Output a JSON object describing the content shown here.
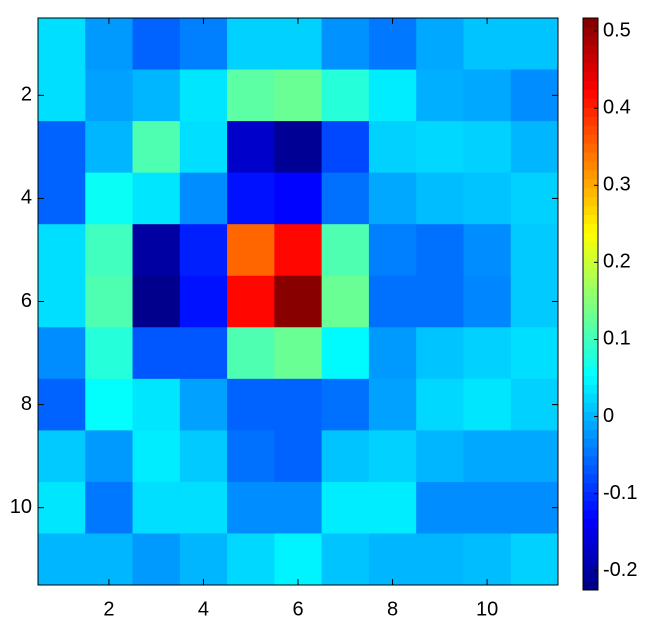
{
  "chart_data": {
    "type": "heatmap",
    "colormap": "jet",
    "x": [
      1,
      2,
      3,
      4,
      5,
      6,
      7,
      8,
      9,
      10,
      11
    ],
    "y": [
      1,
      2,
      3,
      4,
      5,
      6,
      7,
      8,
      9,
      10,
      11
    ],
    "values": [
      [
        0.03,
        -0.02,
        -0.06,
        -0.04,
        0.02,
        0.02,
        -0.025,
        -0.045,
        -0.01,
        0.01,
        0.01
      ],
      [
        0.03,
        -0.015,
        0.0,
        0.035,
        0.12,
        0.13,
        0.08,
        0.04,
        -0.005,
        -0.01,
        -0.03
      ],
      [
        -0.06,
        0.0,
        0.11,
        0.03,
        -0.17,
        -0.21,
        -0.08,
        0.02,
        0.025,
        0.02,
        0.0
      ],
      [
        -0.06,
        0.06,
        0.035,
        -0.03,
        -0.12,
        -0.13,
        -0.05,
        -0.01,
        0.005,
        0.01,
        0.02
      ],
      [
        0.03,
        0.1,
        -0.2,
        -0.11,
        0.35,
        0.42,
        0.11,
        -0.04,
        -0.05,
        -0.03,
        0.015
      ],
      [
        0.03,
        0.11,
        -0.215,
        -0.12,
        0.42,
        0.51,
        0.13,
        -0.05,
        -0.05,
        -0.035,
        0.015
      ],
      [
        -0.03,
        0.08,
        -0.07,
        -0.07,
        0.11,
        0.13,
        0.05,
        -0.02,
        0.01,
        0.02,
        0.03
      ],
      [
        -0.06,
        0.055,
        0.035,
        -0.015,
        -0.06,
        -0.06,
        -0.05,
        -0.015,
        0.025,
        0.035,
        0.02
      ],
      [
        0.015,
        -0.02,
        0.04,
        0.015,
        -0.05,
        -0.06,
        0.01,
        0.02,
        0.0,
        -0.01,
        -0.01
      ],
      [
        0.035,
        -0.045,
        0.03,
        0.03,
        -0.03,
        -0.03,
        0.04,
        0.04,
        -0.03,
        -0.03,
        -0.03
      ],
      [
        0.0,
        0.0,
        -0.02,
        0.0,
        0.025,
        0.045,
        0.01,
        0.0,
        0.0,
        0.005,
        0.02
      ]
    ],
    "xlim": [
      0.5,
      11.5
    ],
    "xticks": [
      2,
      4,
      6,
      8,
      10
    ],
    "ylim": [
      0.5,
      11.5
    ],
    "yticks": [
      2,
      4,
      6,
      8,
      10
    ],
    "y_reversed": true,
    "clim": [
      -0.225,
      0.517
    ],
    "cticks": [
      -0.2,
      -0.1,
      0,
      0.1,
      0.2,
      0.3,
      0.4,
      0.5
    ]
  }
}
